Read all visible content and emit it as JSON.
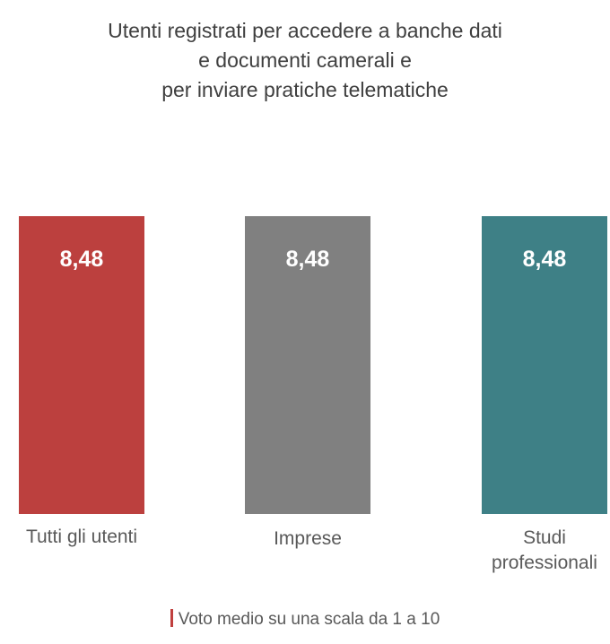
{
  "title_lines": [
    "Utenti registrati per accedere a banche dati",
    "e documenti camerali e",
    "per inviare pratiche telematiche"
  ],
  "legend": {
    "label": "Voto medio su una scala da 1 a 10",
    "color": "#c0403e"
  },
  "chart_data": {
    "type": "bar",
    "categories": [
      [
        "Tutti gli utenti"
      ],
      [
        "Imprese"
      ],
      [
        "Studi",
        "professionali"
      ]
    ],
    "values": [
      8.48,
      8.48,
      8.48
    ],
    "value_labels": [
      "8,48",
      "8,48",
      "8,48"
    ],
    "colors": [
      "#bc403e",
      "#808080",
      "#3e8086"
    ],
    "ylim": [
      0,
      8.48
    ],
    "grid": false,
    "legend_position": "bottom"
  }
}
